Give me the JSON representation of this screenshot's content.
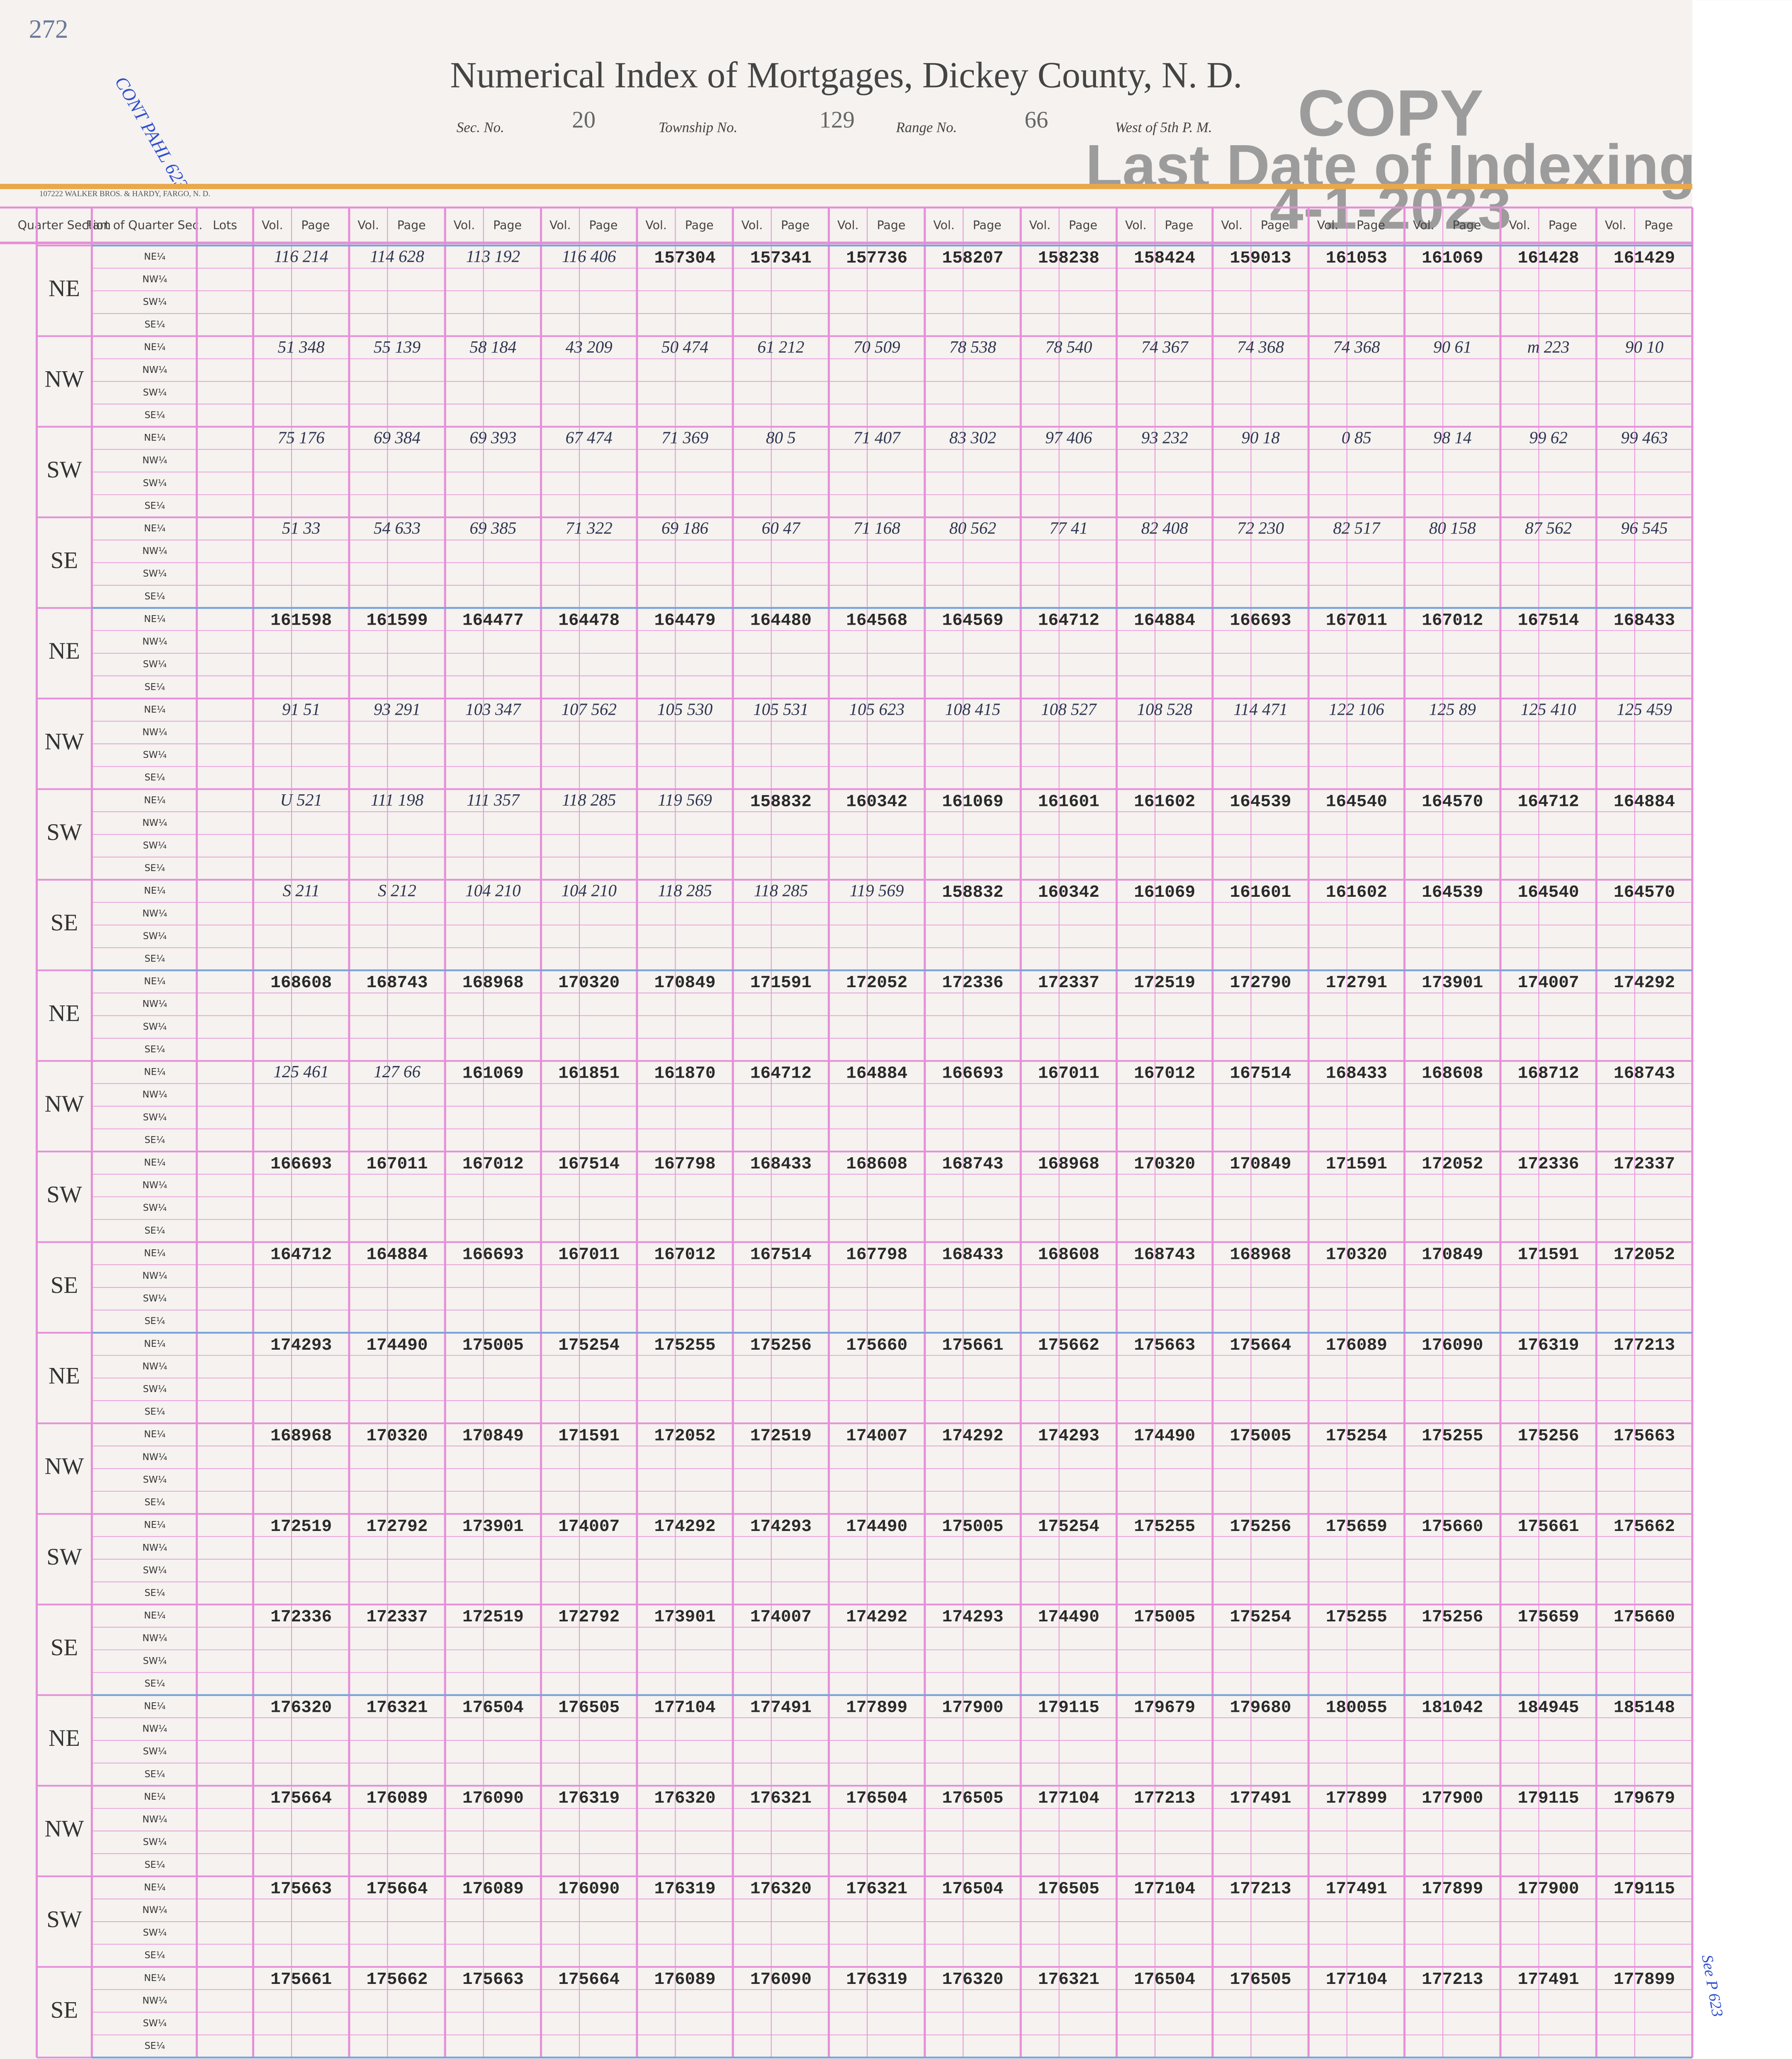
{
  "header": {
    "page_number": "272",
    "title": "Numerical Index of Mortgages, Dickey County, N. D.",
    "sec_label": "Sec. No.",
    "sec": "20",
    "township_label": "Township No.",
    "township": "129",
    "range_label": "Range No.",
    "range": "66",
    "meridian": "West of 5th P. M.",
    "printer": "107222 WALKER BROS. & HARDY, FARGO, N. D."
  },
  "stamp": {
    "copy": "COPY",
    "line1": "Last Date of Indexing",
    "line2": "4-1-2023"
  },
  "annotations": {
    "top_left": "CONT PAHL 623",
    "right_margin": "See P 623"
  },
  "table": {
    "quarter_header": "Quarter Section",
    "part_header": "Part of Quarter Sec.",
    "lots_header": "Lots",
    "vol_header": "Vol.",
    "page_header": "Page",
    "quarters": [
      "NE",
      "NW",
      "SW",
      "SE"
    ],
    "parts": [
      "NE¼",
      "NW¼",
      "SW¼",
      "SE¼"
    ],
    "blocks": [
      [
        [
          "116 214",
          "114 628",
          "113 192",
          "116 406",
          "157304",
          "157341",
          "157736",
          "158207",
          "158238",
          "158424",
          "159013",
          "161053",
          "161069",
          "161428",
          "161429"
        ],
        [
          "51 348",
          "55 139",
          "58 184",
          "43 209",
          "50 474",
          "61 212",
          "70 509",
          "78 538",
          "78 540",
          "74 367",
          "74 368",
          "74 368",
          "90 61",
          "m 223",
          "90 10"
        ],
        [
          "75 176",
          "69 384",
          "69 393",
          "67 474",
          "71 369",
          "80 5",
          "71 407",
          "83 302",
          "97 406",
          "93 232",
          "90 18",
          "0 85",
          "98 14",
          "99 62",
          "99 463"
        ],
        [
          "51 33",
          "54 633",
          "69 385",
          "71 322",
          "69 186",
          "60 47",
          "71 168",
          "80 562",
          "77 41",
          "82 408",
          "72 230",
          "82 517",
          "80 158",
          "87 562",
          "96 545"
        ]
      ],
      [
        [
          "161598",
          "161599",
          "164477",
          "164478",
          "164479",
          "164480",
          "164568",
          "164569",
          "164712",
          "164884",
          "166693",
          "167011",
          "167012",
          "167514",
          "168433"
        ],
        [
          "91 51",
          "93 291",
          "103 347",
          "107 562",
          "105 530",
          "105 531",
          "105 623",
          "108 415",
          "108 527",
          "108 528",
          "114 471",
          "122 106",
          "125 89",
          "125 410",
          "125 459"
        ],
        [
          "U 521",
          "111 198",
          "111 357",
          "118 285",
          "119 569",
          "158832",
          "160342",
          "161069",
          "161601",
          "161602",
          "164539",
          "164540",
          "164570",
          "164712",
          "164884"
        ],
        [
          "S 211",
          "S 212",
          "104 210",
          "104 210",
          "118 285",
          "118 285",
          "119 569",
          "158832",
          "160342",
          "161069",
          "161601",
          "161602",
          "164539",
          "164540",
          "164570"
        ]
      ],
      [
        [
          "168608",
          "168743",
          "168968",
          "170320",
          "170849",
          "171591",
          "172052",
          "172336",
          "172337",
          "172519",
          "172790",
          "172791",
          "173901",
          "174007",
          "174292"
        ],
        [
          "125 461",
          "127 66",
          "161069",
          "161851",
          "161870",
          "164712",
          "164884",
          "166693",
          "167011",
          "167012",
          "167514",
          "168433",
          "168608",
          "168712",
          "168743"
        ],
        [
          "166693",
          "167011",
          "167012",
          "167514",
          "167798",
          "168433",
          "168608",
          "168743",
          "168968",
          "170320",
          "170849",
          "171591",
          "172052",
          "172336",
          "172337"
        ],
        [
          "164712",
          "164884",
          "166693",
          "167011",
          "167012",
          "167514",
          "167798",
          "168433",
          "168608",
          "168743",
          "168968",
          "170320",
          "170849",
          "171591",
          "172052"
        ]
      ],
      [
        [
          "174293",
          "174490",
          "175005",
          "175254",
          "175255",
          "175256",
          "175660",
          "175661",
          "175662",
          "175663",
          "175664",
          "176089",
          "176090",
          "176319",
          "177213"
        ],
        [
          "168968",
          "170320",
          "170849",
          "171591",
          "172052",
          "172519",
          "174007",
          "174292",
          "174293",
          "174490",
          "175005",
          "175254",
          "175255",
          "175256",
          "175663"
        ],
        [
          "172519",
          "172792",
          "173901",
          "174007",
          "174292",
          "174293",
          "174490",
          "175005",
          "175254",
          "175255",
          "175256",
          "175659",
          "175660",
          "175661",
          "175662"
        ],
        [
          "172336",
          "172337",
          "172519",
          "172792",
          "173901",
          "174007",
          "174292",
          "174293",
          "174490",
          "175005",
          "175254",
          "175255",
          "175256",
          "175659",
          "175660"
        ]
      ],
      [
        [
          "176320",
          "176321",
          "176504",
          "176505",
          "177104",
          "177491",
          "177899",
          "177900",
          "179115",
          "179679",
          "179680",
          "180055",
          "181042",
          "184945",
          "185148"
        ],
        [
          "175664",
          "176089",
          "176090",
          "176319",
          "176320",
          "176321",
          "176504",
          "176505",
          "177104",
          "177213",
          "177491",
          "177899",
          "177900",
          "179115",
          "179679"
        ],
        [
          "175663",
          "175664",
          "176089",
          "176090",
          "176319",
          "176320",
          "176321",
          "176504",
          "176505",
          "177104",
          "177213",
          "177491",
          "177899",
          "177900",
          "179115"
        ],
        [
          "175661",
          "175662",
          "175663",
          "175664",
          "176089",
          "176090",
          "176319",
          "176320",
          "176321",
          "176504",
          "176505",
          "177104",
          "177213",
          "177491",
          "177899"
        ]
      ]
    ]
  }
}
